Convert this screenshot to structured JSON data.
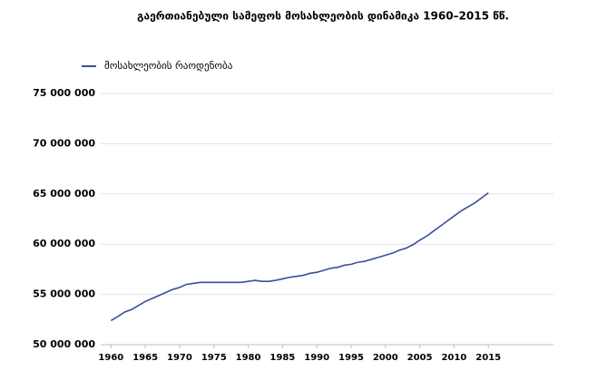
{
  "chart_data": {
    "type": "line",
    "title": "გაერთიანებული სამეფოს მოსახლეობის დინამიკა 1960–2015 წწ.",
    "x": [
      1960,
      1961,
      1962,
      1963,
      1964,
      1965,
      1966,
      1967,
      1968,
      1969,
      1970,
      1971,
      1972,
      1973,
      1974,
      1975,
      1976,
      1977,
      1978,
      1979,
      1980,
      1981,
      1982,
      1983,
      1984,
      1985,
      1986,
      1987,
      1988,
      1989,
      1990,
      1991,
      1992,
      1993,
      1994,
      1995,
      1996,
      1997,
      1998,
      1999,
      2000,
      2001,
      2002,
      2003,
      2004,
      2005,
      2006,
      2007,
      2008,
      2009,
      2010,
      2011,
      2012,
      2013,
      2014,
      2015
    ],
    "series": [
      {
        "name": "მოსახლეობის რაოდენობა",
        "color": "#3b4f9e",
        "values": [
          52400000,
          52800000,
          53250000,
          53500000,
          53900000,
          54300000,
          54600000,
          54900000,
          55200000,
          55500000,
          55700000,
          56000000,
          56100000,
          56200000,
          56200000,
          56200000,
          56200000,
          56200000,
          56200000,
          56200000,
          56300000,
          56400000,
          56300000,
          56300000,
          56400000,
          56550000,
          56700000,
          56800000,
          56900000,
          57100000,
          57200000,
          57400000,
          57600000,
          57700000,
          57900000,
          58000000,
          58200000,
          58300000,
          58500000,
          58700000,
          58900000,
          59100000,
          59400000,
          59600000,
          59950000,
          60400000,
          60800000,
          61300000,
          61800000,
          62300000,
          62800000,
          63300000,
          63700000,
          64100000,
          64600000,
          65100000
        ]
      }
    ],
    "xlim": [
      1958.5,
      2024.5
    ],
    "xticks": [
      1960,
      1965,
      1970,
      1975,
      1980,
      1985,
      1990,
      1995,
      2000,
      2005,
      2010,
      2015
    ],
    "ylim": [
      50000000,
      75000000
    ],
    "yticks": [
      {
        "value": 50000000,
        "label": "50 000 000"
      },
      {
        "value": 55000000,
        "label": "55 000 000"
      },
      {
        "value": 60000000,
        "label": "60 000 000"
      },
      {
        "value": 65000000,
        "label": "65 000 000"
      },
      {
        "value": 70000000,
        "label": "70 000 000"
      },
      {
        "value": 75000000,
        "label": "75 000 000"
      }
    ],
    "grid": true,
    "legend": "top-left"
  }
}
